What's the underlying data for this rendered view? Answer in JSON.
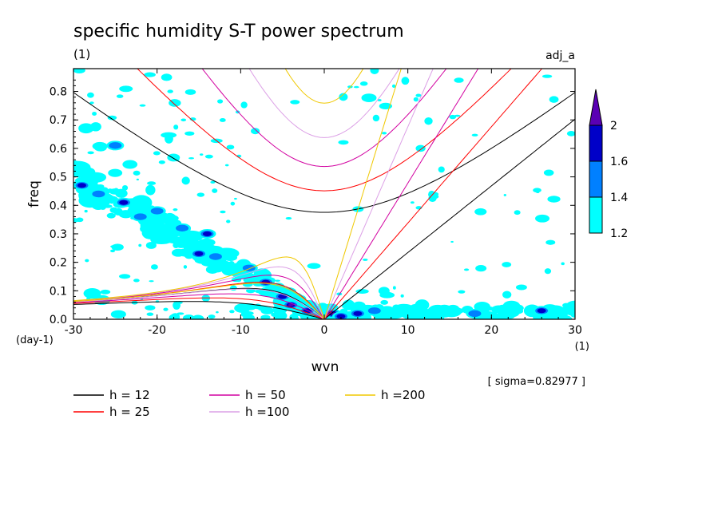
{
  "chart_data": {
    "type": "heatmap",
    "title": "specific humidity S-T power spectrum",
    "title_unit": "(1)",
    "corner_label": "adj_a",
    "xlabel": "wvn",
    "ylabel": "freq",
    "x_unit": "(1)",
    "y_unit": "(day-1)",
    "xlim": [
      -30,
      30
    ],
    "ylim": [
      0,
      0.88
    ],
    "x_ticks": [
      "-30",
      "-20",
      "-10",
      "0",
      "10",
      "20",
      "30"
    ],
    "y_ticks": [
      "0.0",
      "0.1",
      "0.2",
      "0.3",
      "0.4",
      "0.5",
      "0.6",
      "0.7",
      "0.8"
    ],
    "sigma_text": "[ sigma=0.82977 ]",
    "colorbar": {
      "levels": [
        "1.2",
        "1.4",
        "1.6",
        "2"
      ],
      "colors": [
        "#00ffff",
        "#0080ff",
        "#0000c8",
        "#5a00b4"
      ]
    },
    "legend": [
      {
        "label": "h = 12",
        "color": "#000000"
      },
      {
        "label": "h = 25",
        "color": "#ff0000"
      },
      {
        "label": "h = 50",
        "color": "#d200a0"
      },
      {
        "label": "h =100",
        "color": "#dca0e6"
      },
      {
        "label": "h =200",
        "color": "#f0c800"
      }
    ],
    "dispersion_curves": [
      {
        "h": 12,
        "color": "#000000"
      },
      {
        "h": 25,
        "color": "#ff0000"
      },
      {
        "h": 50,
        "color": "#d200a0"
      },
      {
        "h": 100,
        "color": "#dca0e6"
      },
      {
        "h": 200,
        "color": "#f0c800"
      }
    ],
    "spectral_peaks": [
      {
        "x": -29,
        "y": 0.47,
        "level": 1.6
      },
      {
        "x": -27,
        "y": 0.44,
        "level": 1.4
      },
      {
        "x": -25,
        "y": 0.61,
        "level": 1.4
      },
      {
        "x": -24,
        "y": 0.41,
        "level": 1.6
      },
      {
        "x": -22,
        "y": 0.36,
        "level": 1.4
      },
      {
        "x": -20,
        "y": 0.38,
        "level": 1.4
      },
      {
        "x": -17,
        "y": 0.32,
        "level": 1.4
      },
      {
        "x": -14,
        "y": 0.3,
        "level": 1.6
      },
      {
        "x": -15,
        "y": 0.23,
        "level": 1.6
      },
      {
        "x": -13,
        "y": 0.22,
        "level": 1.4
      },
      {
        "x": -9,
        "y": 0.18,
        "level": 1.4
      },
      {
        "x": -7,
        "y": 0.13,
        "level": 1.6
      },
      {
        "x": -5,
        "y": 0.08,
        "level": 1.6
      },
      {
        "x": -4,
        "y": 0.05,
        "level": 2.0
      },
      {
        "x": -2,
        "y": 0.03,
        "level": 1.6
      },
      {
        "x": 1,
        "y": 0.02,
        "level": 2.0
      },
      {
        "x": 2,
        "y": 0.01,
        "level": 1.6
      },
      {
        "x": 4,
        "y": 0.02,
        "level": 1.6
      },
      {
        "x": 6,
        "y": 0.03,
        "level": 1.4
      },
      {
        "x": 18,
        "y": 0.02,
        "level": 1.4
      },
      {
        "x": 26,
        "y": 0.03,
        "level": 1.6
      }
    ]
  }
}
